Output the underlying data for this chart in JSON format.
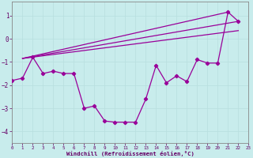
{
  "xlabel": "Windchill (Refroidissement éolien,°C)",
  "background_color": "#c8ecec",
  "line_color": "#990099",
  "grid_color": "#b8dede",
  "xlim": [
    0,
    23
  ],
  "ylim": [
    -4.5,
    1.6
  ],
  "yticks": [
    -4,
    -3,
    -2,
    -1,
    0,
    1
  ],
  "xticks": [
    0,
    1,
    2,
    3,
    4,
    5,
    6,
    7,
    8,
    9,
    10,
    11,
    12,
    13,
    14,
    15,
    16,
    17,
    18,
    19,
    20,
    21,
    22,
    23
  ],
  "line_main": [
    [
      0,
      -1.8
    ],
    [
      1,
      -1.7
    ],
    [
      2,
      -0.8
    ],
    [
      3,
      -1.5
    ],
    [
      4,
      -1.4
    ],
    [
      5,
      -1.5
    ],
    [
      6,
      -1.5
    ],
    [
      7,
      -3.0
    ],
    [
      8,
      -2.9
    ],
    [
      9,
      -3.55
    ],
    [
      10,
      -3.6
    ],
    [
      11,
      -3.6
    ],
    [
      12,
      -3.6
    ],
    [
      13,
      -2.6
    ],
    [
      14,
      -1.15
    ],
    [
      15,
      -1.9
    ],
    [
      16,
      -1.6
    ],
    [
      17,
      -1.85
    ],
    [
      18,
      -0.9
    ],
    [
      19,
      -1.05
    ],
    [
      20,
      -1.05
    ],
    [
      21,
      1.15
    ],
    [
      22,
      0.75
    ]
  ],
  "line_straight1": [
    [
      1,
      -0.85
    ],
    [
      22,
      0.75
    ]
  ],
  "line_straight2": [
    [
      1,
      -0.85
    ],
    [
      21,
      1.15
    ]
  ],
  "line_straight3": [
    [
      1,
      -0.85
    ],
    [
      22,
      0.35
    ]
  ]
}
